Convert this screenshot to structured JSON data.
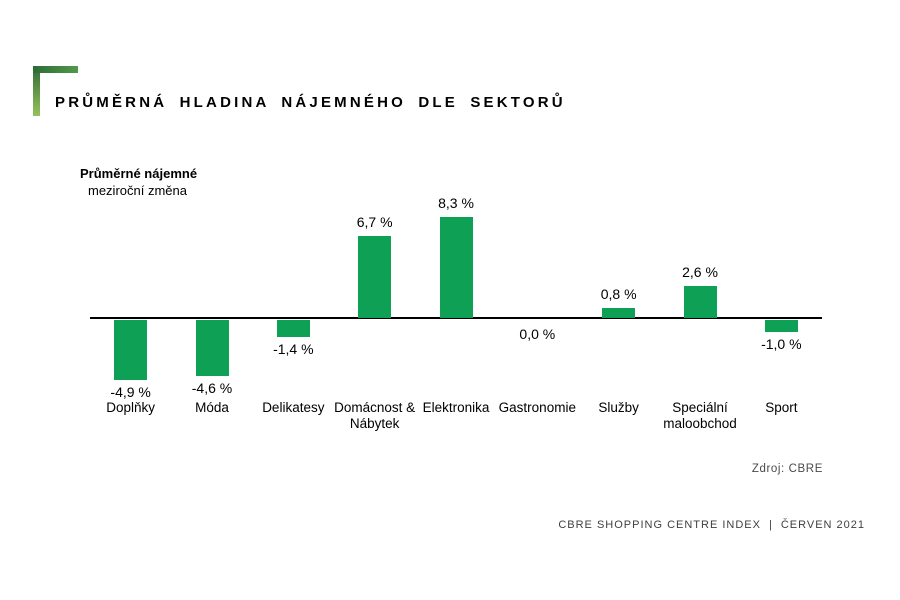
{
  "header": {
    "title": "PRŮMĚRNÁ HLADINA NÁJEMNÉHO DLE SEKTORŮ"
  },
  "axis_label": {
    "line1": "Průměrné nájemné",
    "line2": "meziroční změna"
  },
  "chart_data": {
    "type": "bar",
    "title": "Průměrná hladina nájemného dle sektorů",
    "ylabel": "Průměrné nájemné, meziroční změna (%)",
    "xlabel": "",
    "categories": [
      "Doplňky",
      "Móda",
      "Delikatesy",
      "Domácnost & Nábytek",
      "Elektronika",
      "Gastronomie",
      "Služby",
      "Speciální maloobchod",
      "Sport"
    ],
    "values": [
      -4.9,
      -4.6,
      -1.4,
      6.7,
      8.3,
      0.0,
      0.8,
      2.6,
      -1.0
    ],
    "value_labels": [
      "-4,9 %",
      "-4,6 %",
      "-1,4 %",
      "6,7 %",
      "8,3 %",
      "0,0 %",
      "0,8 %",
      "2,6 %",
      "-1,0 %"
    ],
    "ylim": [
      -6,
      9
    ],
    "grid": false,
    "legend_position": "none",
    "bar_color": "#0ea155"
  },
  "footer": {
    "source": "Zdroj: CBRE",
    "index_label": "CBRE SHOPPING CENTRE INDEX",
    "separator": "|",
    "date": "ČERVEN 2021"
  },
  "accent": {
    "corner_dark": "#2e6b36",
    "corner_mid": "#4f9a4c",
    "corner_light": "#96c25a"
  }
}
